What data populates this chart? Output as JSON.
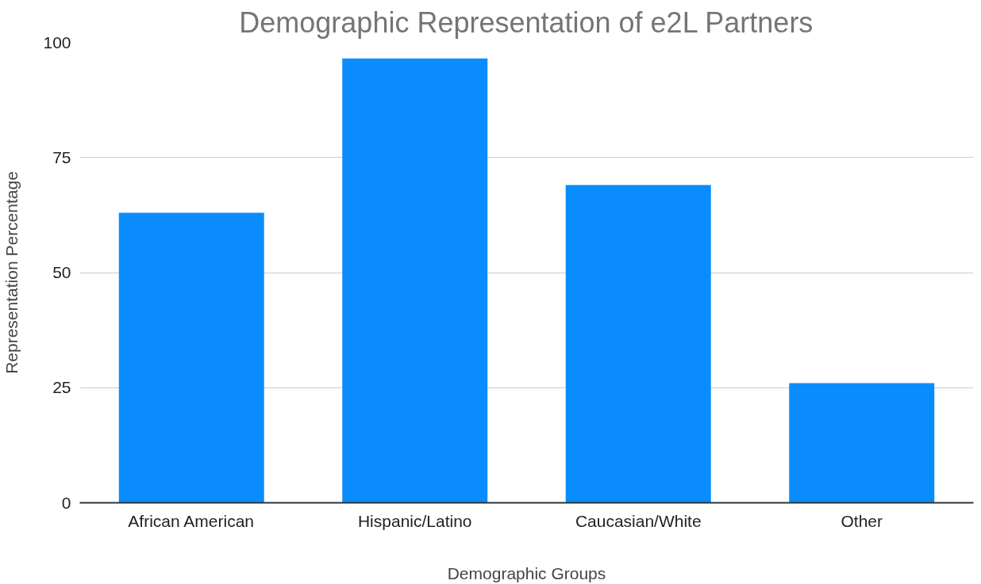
{
  "chart_data": {
    "type": "bar",
    "title": "Demographic Representation of e2L Partners",
    "xlabel": "Demographic Groups",
    "ylabel": "Representation Percentage",
    "categories": [
      "African American",
      "Hispanic/Latino",
      "Caucasian/White",
      "Other"
    ],
    "series": [
      {
        "color": "#0a8cfc",
        "values": [
          63,
          96.5,
          69,
          26
        ]
      }
    ],
    "ylim": [
      0,
      100
    ],
    "yticks": [
      0,
      25,
      50,
      75,
      100
    ],
    "grid": "y"
  }
}
